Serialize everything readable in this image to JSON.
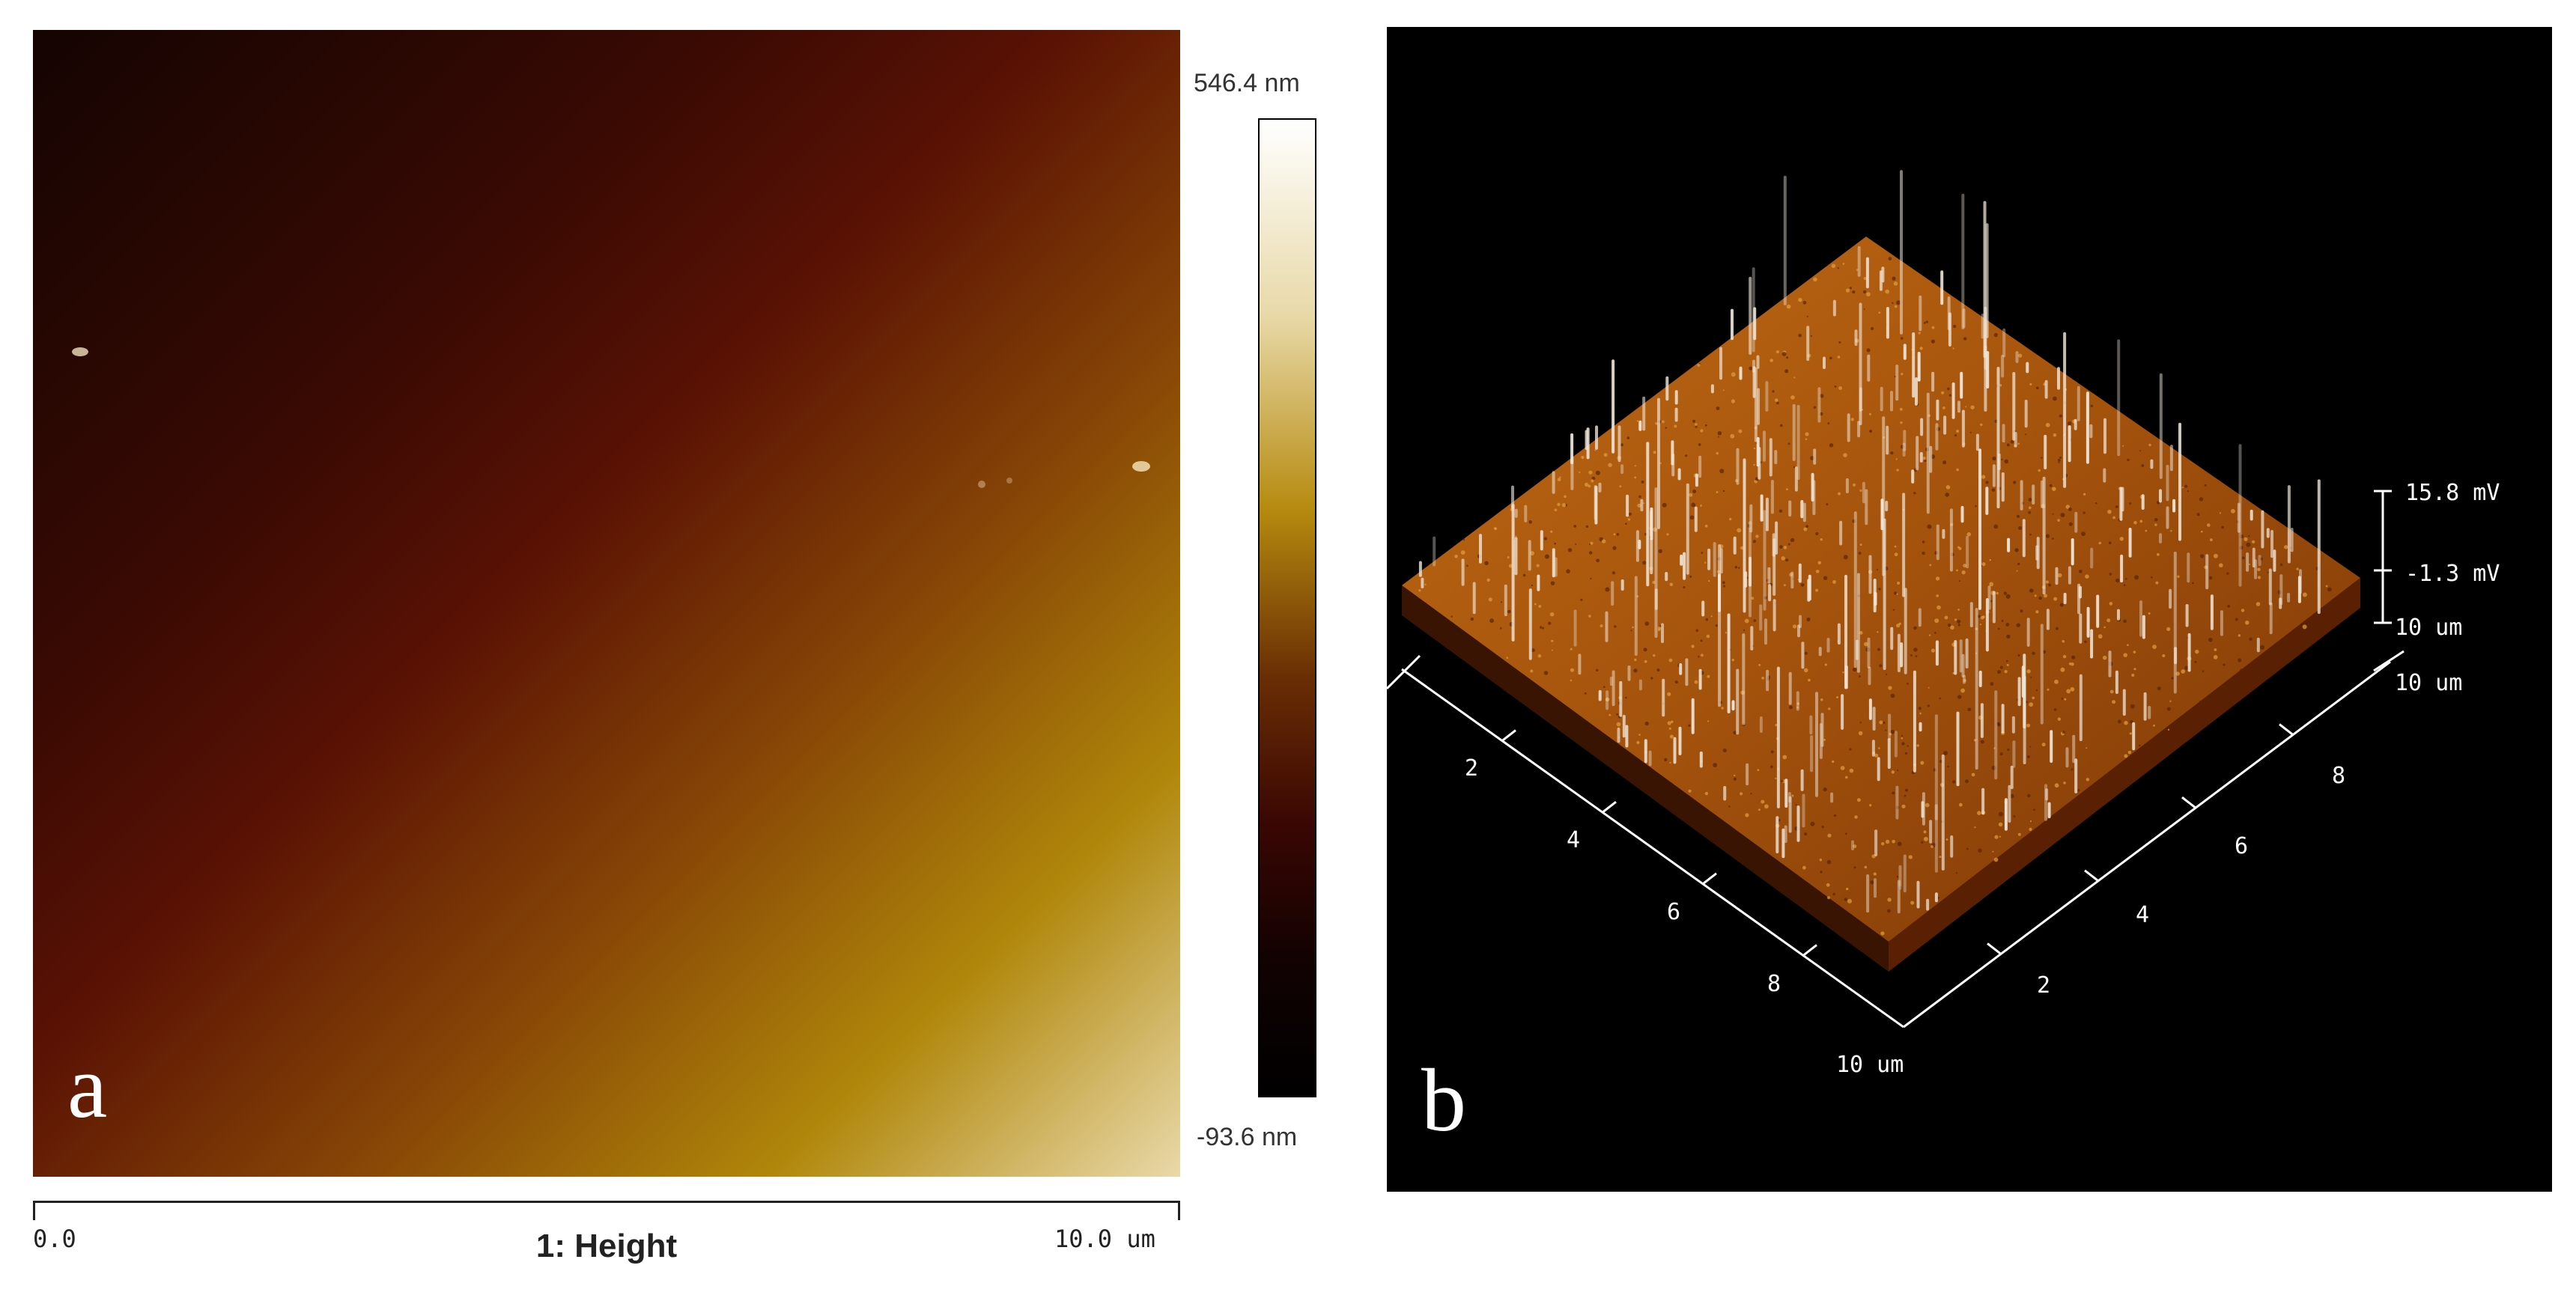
{
  "panel_a": {
    "letter": "a",
    "colorbar_max": "546.4 nm",
    "colorbar_min": "-93.6 nm",
    "axis_start": "0.0",
    "axis_end": "10.0 um",
    "axis_title": "1: Height",
    "colors": {
      "dark": "#140402",
      "mid": "#8a4a06",
      "light": "#e9d9a9"
    }
  },
  "panel_b": {
    "letter": "b",
    "z_max": "15.8 mV",
    "z_min": "-1.3 mV",
    "z_axis_um": "10 um",
    "right_axis_end": "10 um",
    "left_axis_end": "10 um",
    "left_ticks": [
      "2",
      "4",
      "6",
      "8"
    ],
    "right_ticks": [
      "2",
      "4",
      "6",
      "8"
    ],
    "surface_color": "#a3520c"
  }
}
